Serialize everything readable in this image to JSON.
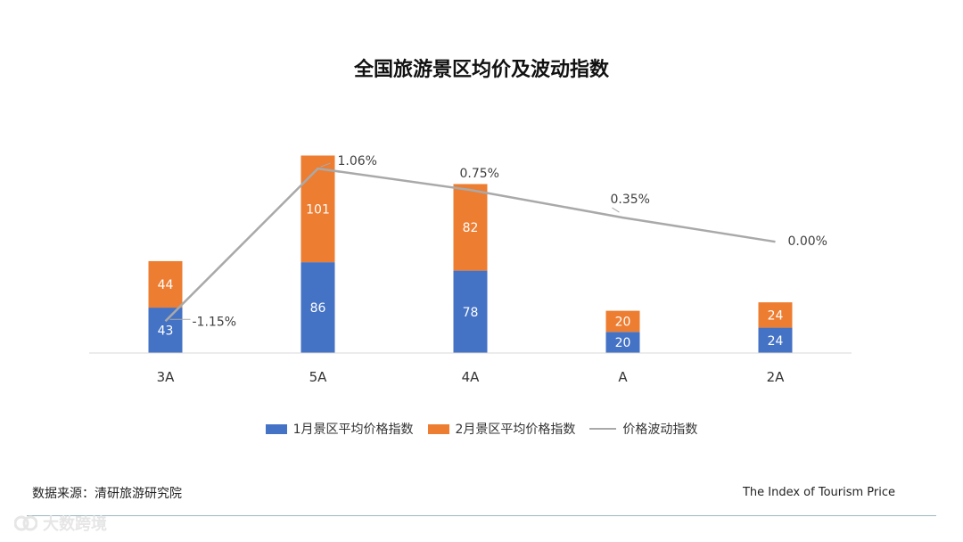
{
  "chart_data": {
    "type": "bar",
    "stacked": true,
    "title": "全国旅游景区均价及波动指数",
    "categories": [
      "3A",
      "5A",
      "4A",
      "A",
      "2A"
    ],
    "series": [
      {
        "name": "1月景区平均价格指数",
        "type": "bar",
        "color": "#4472c4",
        "values": [
          43,
          86,
          78,
          20,
          24
        ]
      },
      {
        "name": "2月景区平均价格指数",
        "type": "bar",
        "color": "#ed7d31",
        "values": [
          44,
          101,
          82,
          20,
          24
        ]
      },
      {
        "name": "价格波动指数",
        "type": "line",
        "color": "#a9a9a9",
        "values": [
          -1.15,
          1.06,
          0.75,
          0.35,
          0.0
        ],
        "labels": [
          "-1.15%",
          "1.06%",
          "0.75%",
          "0.35%",
          "0.00%"
        ]
      }
    ],
    "bar_ylim": [
      0,
      195
    ],
    "line_ylim": [
      -1.25,
      1.1
    ],
    "legend_position": "bottom",
    "grid": false
  },
  "footer": {
    "source": "数据来源：清研旅游研究院",
    "index_name": "The Index of Tourism Price",
    "watermark": "大数跨境"
  }
}
